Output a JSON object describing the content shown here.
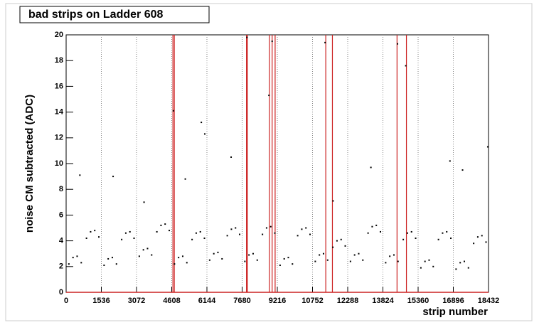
{
  "chart_data": {
    "type": "scatter",
    "title": "bad strips on Ladder 608",
    "xlabel": "strip number",
    "ylabel": "noise CM subtracted (ADC)",
    "xlim": [
      0,
      18432
    ],
    "ylim": [
      0,
      20
    ],
    "xticks": [
      0,
      1536,
      3072,
      4608,
      6144,
      7680,
      9216,
      10752,
      12288,
      13824,
      15360,
      16896,
      18432
    ],
    "yticks": [
      0,
      2,
      4,
      6,
      8,
      10,
      12,
      14,
      16,
      18,
      20
    ],
    "grid": true,
    "color": "#000000",
    "bad_strip_color": "#cc2222",
    "x": [
      120,
      300,
      480,
      660,
      888,
      1068,
      1248,
      1428,
      1656,
      1836,
      2016,
      2196,
      2424,
      2604,
      2784,
      2964,
      3192,
      3372,
      3552,
      3732,
      3960,
      4140,
      4320,
      4500,
      4728,
      4908,
      5088,
      5268,
      5496,
      5676,
      5856,
      6036,
      6264,
      6444,
      6624,
      6804,
      7032,
      7212,
      7392,
      7572,
      7800,
      7980,
      8160,
      8340,
      8568,
      8748,
      8928,
      9108,
      9336,
      9516,
      9696,
      9876,
      10104,
      10284,
      10464,
      10644,
      10872,
      11052,
      11232,
      11412,
      11640,
      11820,
      12000,
      12180,
      12408,
      12588,
      12768,
      12948,
      13176,
      13356,
      13536,
      13716,
      13944,
      14124,
      14304,
      14484,
      14712,
      14892,
      15072,
      15252,
      15480,
      15660,
      15840,
      16020,
      16248,
      16428,
      16608,
      16788,
      17016,
      17196,
      17376,
      17556,
      17784,
      17964,
      18144,
      18324,
      600,
      2050,
      3400,
      4680,
      5200,
      5900,
      6050,
      7200,
      7890,
      8850,
      8990,
      11300,
      11650,
      13300,
      14460,
      14820,
      16750,
      17300,
      18400
    ],
    "values": [
      2.2,
      2.7,
      2.8,
      2.3,
      4.2,
      4.7,
      4.8,
      4.3,
      2.1,
      2.6,
      2.7,
      2.2,
      4.1,
      4.6,
      4.7,
      4.2,
      2.8,
      3.3,
      3.4,
      2.9,
      4.7,
      5.2,
      5.3,
      4.8,
      2.2,
      2.7,
      2.8,
      2.3,
      4.1,
      4.6,
      4.7,
      4.2,
      2.5,
      3.0,
      3.1,
      2.6,
      4.4,
      4.9,
      5.0,
      4.5,
      2.4,
      2.9,
      3.0,
      2.5,
      4.5,
      5.0,
      5.1,
      4.6,
      2.1,
      2.6,
      2.7,
      2.2,
      4.4,
      4.9,
      5.0,
      4.5,
      2.4,
      2.9,
      3.0,
      2.5,
      3.5,
      4.0,
      4.1,
      3.6,
      2.4,
      2.9,
      3.0,
      2.5,
      4.6,
      5.1,
      5.2,
      4.7,
      2.3,
      2.8,
      2.9,
      2.4,
      4.1,
      4.6,
      4.7,
      4.2,
      1.9,
      2.4,
      2.5,
      2.0,
      4.1,
      4.6,
      4.7,
      4.2,
      1.8,
      2.3,
      2.4,
      1.9,
      3.8,
      4.3,
      4.4,
      3.9,
      9.1,
      9.0,
      7.0,
      14.1,
      8.8,
      13.2,
      12.3,
      10.5,
      19.8,
      15.3,
      19.5,
      19.4,
      7.1,
      9.7,
      19.3,
      17.6,
      10.2,
      9.5,
      11.3
    ],
    "bad_strips": [
      4660,
      4720,
      7870,
      7910,
      8870,
      8990,
      9120,
      11330,
      11620,
      14440,
      14850
    ]
  }
}
